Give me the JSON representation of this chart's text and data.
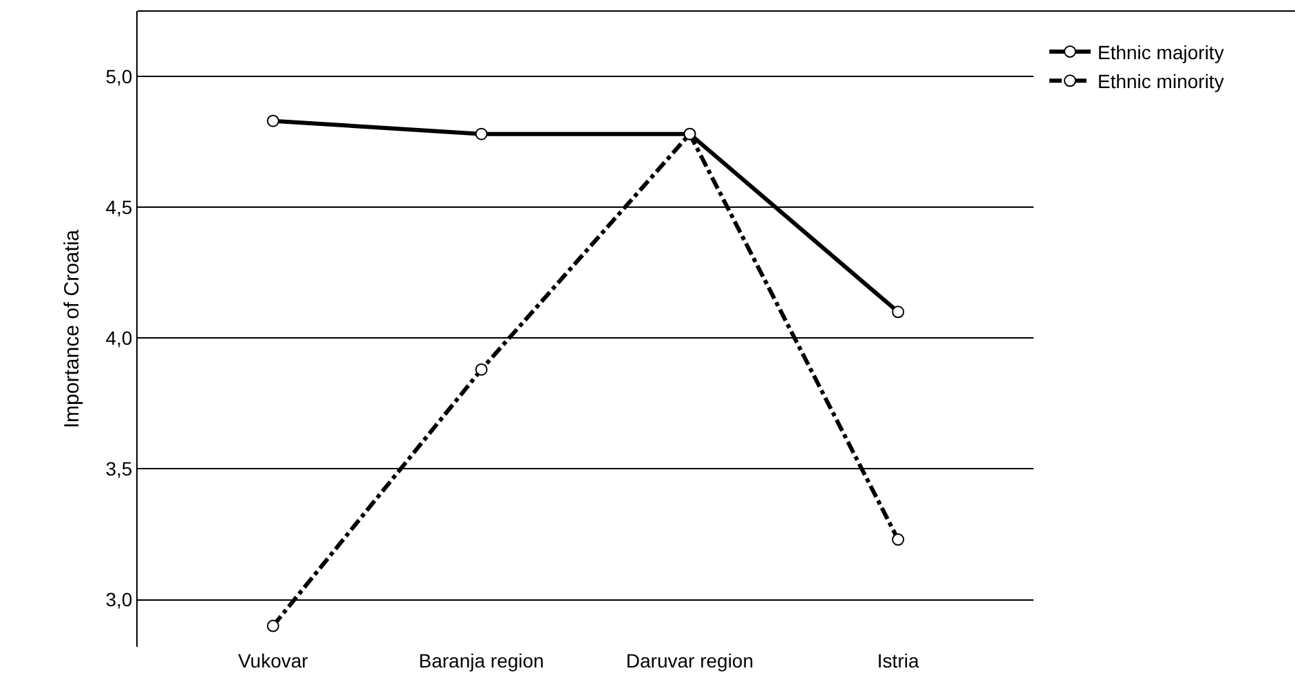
{
  "chart_data": {
    "type": "line",
    "ylabel": "Importance of Croatia",
    "categories": [
      "Vukovar",
      "Baranja region",
      "Daruvar region",
      "Istria"
    ],
    "series": [
      {
        "name": "Ethnic majority",
        "color": "#000000",
        "line_style": "solid",
        "values": [
          4.83,
          4.78,
          4.78,
          4.1
        ]
      },
      {
        "name": "Ethnic minority",
        "color": "#000000",
        "line_style": "dashdot",
        "values": [
          2.9,
          3.88,
          4.78,
          3.23
        ]
      }
    ],
    "ylim": [
      2.82,
      5.25
    ],
    "yticks": [
      {
        "value": 3.0,
        "label": "3,0"
      },
      {
        "value": 3.5,
        "label": "3,5"
      },
      {
        "value": 4.0,
        "label": "4,0"
      },
      {
        "value": 4.5,
        "label": "4,5"
      },
      {
        "value": 5.0,
        "label": "5,0"
      }
    ],
    "grid": "y",
    "legend": "top right",
    "marker": "circle"
  }
}
